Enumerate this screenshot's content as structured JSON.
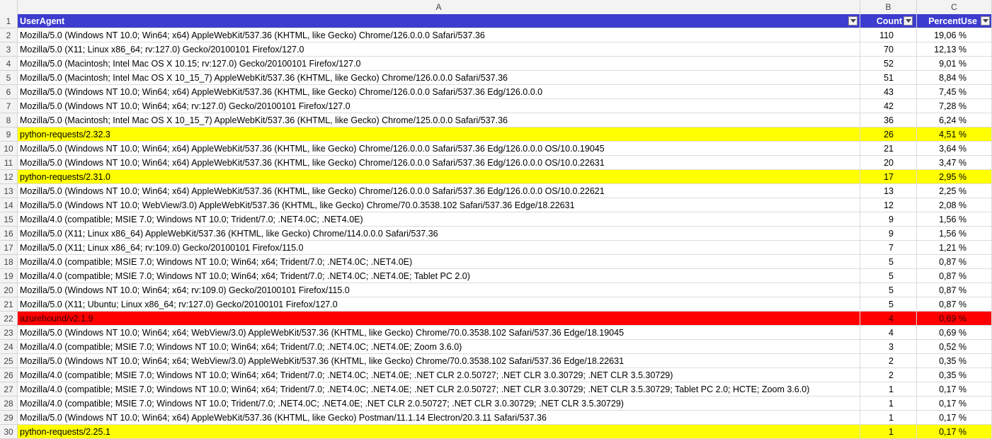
{
  "columns": [
    "A",
    "B",
    "C"
  ],
  "header": {
    "rownum": "1",
    "a": "UserAgent",
    "b": "Count",
    "c": "PercentUse"
  },
  "colors": {
    "header_bg": "#3c3ccf",
    "highlight_yellow": "#ffff00",
    "highlight_red": "#ff0000"
  },
  "rows": [
    {
      "n": "2",
      "ua": "Mozilla/5.0 (Windows NT 10.0; Win64; x64) AppleWebKit/537.36 (KHTML, like Gecko) Chrome/126.0.0.0 Safari/537.36",
      "count": "110",
      "pct": "19,06 %",
      "hl": ""
    },
    {
      "n": "3",
      "ua": "Mozilla/5.0 (X11; Linux x86_64; rv:127.0) Gecko/20100101 Firefox/127.0",
      "count": "70",
      "pct": "12,13 %",
      "hl": ""
    },
    {
      "n": "4",
      "ua": "Mozilla/5.0 (Macintosh; Intel Mac OS X 10.15; rv:127.0) Gecko/20100101 Firefox/127.0",
      "count": "52",
      "pct": "9,01 %",
      "hl": ""
    },
    {
      "n": "5",
      "ua": "Mozilla/5.0 (Macintosh; Intel Mac OS X 10_15_7) AppleWebKit/537.36 (KHTML, like Gecko) Chrome/126.0.0.0 Safari/537.36",
      "count": "51",
      "pct": "8,84 %",
      "hl": ""
    },
    {
      "n": "6",
      "ua": "Mozilla/5.0 (Windows NT 10.0; Win64; x64) AppleWebKit/537.36 (KHTML, like Gecko) Chrome/126.0.0.0 Safari/537.36 Edg/126.0.0.0",
      "count": "43",
      "pct": "7,45 %",
      "hl": ""
    },
    {
      "n": "7",
      "ua": "Mozilla/5.0 (Windows NT 10.0; Win64; x64; rv:127.0) Gecko/20100101 Firefox/127.0",
      "count": "42",
      "pct": "7,28 %",
      "hl": ""
    },
    {
      "n": "8",
      "ua": "Mozilla/5.0 (Macintosh; Intel Mac OS X 10_15_7) AppleWebKit/537.36 (KHTML, like Gecko) Chrome/125.0.0.0 Safari/537.36",
      "count": "36",
      "pct": "6,24 %",
      "hl": ""
    },
    {
      "n": "9",
      "ua": "python-requests/2.32.3",
      "count": "26",
      "pct": "4,51 %",
      "hl": "yellow"
    },
    {
      "n": "10",
      "ua": "Mozilla/5.0 (Windows NT 10.0; Win64; x64) AppleWebKit/537.36 (KHTML, like Gecko) Chrome/126.0.0.0 Safari/537.36 Edg/126.0.0.0 OS/10.0.19045",
      "count": "21",
      "pct": "3,64 %",
      "hl": ""
    },
    {
      "n": "11",
      "ua": "Mozilla/5.0 (Windows NT 10.0; Win64; x64) AppleWebKit/537.36 (KHTML, like Gecko) Chrome/126.0.0.0 Safari/537.36 Edg/126.0.0.0 OS/10.0.22631",
      "count": "20",
      "pct": "3,47 %",
      "hl": ""
    },
    {
      "n": "12",
      "ua": "python-requests/2.31.0",
      "count": "17",
      "pct": "2,95 %",
      "hl": "yellow"
    },
    {
      "n": "13",
      "ua": "Mozilla/5.0 (Windows NT 10.0; Win64; x64) AppleWebKit/537.36 (KHTML, like Gecko) Chrome/126.0.0.0 Safari/537.36 Edg/126.0.0.0 OS/10.0.22621",
      "count": "13",
      "pct": "2,25 %",
      "hl": ""
    },
    {
      "n": "14",
      "ua": "Mozilla/5.0 (Windows NT 10.0; WebView/3.0) AppleWebKit/537.36 (KHTML, like Gecko) Chrome/70.0.3538.102 Safari/537.36 Edge/18.22631",
      "count": "12",
      "pct": "2,08 %",
      "hl": ""
    },
    {
      "n": "15",
      "ua": "Mozilla/4.0 (compatible; MSIE 7.0; Windows NT 10.0; Trident/7.0; .NET4.0C; .NET4.0E)",
      "count": "9",
      "pct": "1,56 %",
      "hl": ""
    },
    {
      "n": "16",
      "ua": "Mozilla/5.0 (X11; Linux x86_64) AppleWebKit/537.36 (KHTML, like Gecko) Chrome/114.0.0.0 Safari/537.36",
      "count": "9",
      "pct": "1,56 %",
      "hl": ""
    },
    {
      "n": "17",
      "ua": "Mozilla/5.0 (X11; Linux x86_64; rv:109.0) Gecko/20100101 Firefox/115.0",
      "count": "7",
      "pct": "1,21 %",
      "hl": ""
    },
    {
      "n": "18",
      "ua": "Mozilla/4.0 (compatible; MSIE 7.0; Windows NT 10.0; Win64; x64; Trident/7.0; .NET4.0C; .NET4.0E)",
      "count": "5",
      "pct": "0,87 %",
      "hl": ""
    },
    {
      "n": "19",
      "ua": "Mozilla/4.0 (compatible; MSIE 7.0; Windows NT 10.0; Win64; x64; Trident/7.0; .NET4.0C; .NET4.0E; Tablet PC 2.0)",
      "count": "5",
      "pct": "0,87 %",
      "hl": ""
    },
    {
      "n": "20",
      "ua": "Mozilla/5.0 (Windows NT 10.0; Win64; x64; rv:109.0) Gecko/20100101 Firefox/115.0",
      "count": "5",
      "pct": "0,87 %",
      "hl": ""
    },
    {
      "n": "21",
      "ua": "Mozilla/5.0 (X11; Ubuntu; Linux x86_64; rv:127.0) Gecko/20100101 Firefox/127.0",
      "count": "5",
      "pct": "0,87 %",
      "hl": ""
    },
    {
      "n": "22",
      "ua": "azurehound/v2.1.9",
      "count": "4",
      "pct": "0,69 %",
      "hl": "red"
    },
    {
      "n": "23",
      "ua": "Mozilla/5.0 (Windows NT 10.0; Win64; x64; WebView/3.0) AppleWebKit/537.36 (KHTML, like Gecko) Chrome/70.0.3538.102 Safari/537.36 Edge/18.19045",
      "count": "4",
      "pct": "0,69 %",
      "hl": ""
    },
    {
      "n": "24",
      "ua": "Mozilla/4.0 (compatible; MSIE 7.0; Windows NT 10.0; Win64; x64; Trident/7.0; .NET4.0C; .NET4.0E; Zoom 3.6.0)",
      "count": "3",
      "pct": "0,52 %",
      "hl": ""
    },
    {
      "n": "25",
      "ua": "Mozilla/5.0 (Windows NT 10.0; Win64; x64; WebView/3.0) AppleWebKit/537.36 (KHTML, like Gecko) Chrome/70.0.3538.102 Safari/537.36 Edge/18.22631",
      "count": "2",
      "pct": "0,35 %",
      "hl": ""
    },
    {
      "n": "26",
      "ua": "Mozilla/4.0 (compatible; MSIE 7.0; Windows NT 10.0; Win64; x64; Trident/7.0; .NET4.0C; .NET4.0E; .NET CLR 2.0.50727; .NET CLR 3.0.30729; .NET CLR 3.5.30729)",
      "count": "2",
      "pct": "0,35 %",
      "hl": ""
    },
    {
      "n": "27",
      "ua": "Mozilla/4.0 (compatible; MSIE 7.0; Windows NT 10.0; Win64; x64; Trident/7.0; .NET4.0C; .NET4.0E; .NET CLR 2.0.50727; .NET CLR 3.0.30729; .NET CLR 3.5.30729; Tablet PC 2.0; HCTE; Zoom 3.6.0)",
      "count": "1",
      "pct": "0,17 %",
      "hl": ""
    },
    {
      "n": "28",
      "ua": "Mozilla/4.0 (compatible; MSIE 7.0; Windows NT 10.0; Trident/7.0; .NET4.0C; .NET4.0E; .NET CLR 2.0.50727; .NET CLR 3.0.30729; .NET CLR 3.5.30729)",
      "count": "1",
      "pct": "0,17 %",
      "hl": ""
    },
    {
      "n": "29",
      "ua": "Mozilla/5.0 (Windows NT 10.0; Win64; x64) AppleWebKit/537.36 (KHTML, like Gecko) Postman/11.1.14 Electron/20.3.11 Safari/537.36",
      "count": "1",
      "pct": "0,17 %",
      "hl": ""
    },
    {
      "n": "30",
      "ua": "python-requests/2.25.1",
      "count": "1",
      "pct": "0,17 %",
      "hl": "yellow"
    }
  ]
}
